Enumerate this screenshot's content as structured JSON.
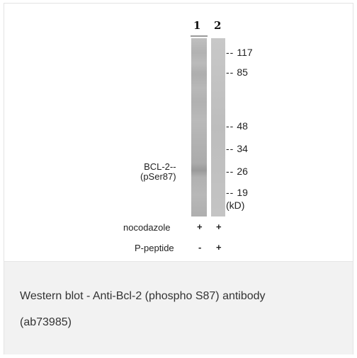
{
  "blot": {
    "lane_numbers": [
      "1",
      "2"
    ],
    "markers": [
      {
        "value": "117",
        "tick": "--"
      },
      {
        "value": "85",
        "tick": "--"
      },
      {
        "value": "48",
        "tick": "--"
      },
      {
        "value": "34",
        "tick": "--"
      },
      {
        "value": "26",
        "tick": "--"
      },
      {
        "value": "19",
        "tick": "--"
      }
    ],
    "unit": "(kD)",
    "band_label_line1": "BCL-2--",
    "band_label_line2": "(pSer87)",
    "treatments": [
      {
        "name": "nocodazole",
        "lane1": "+",
        "lane2": "+"
      },
      {
        "name": "P-peptide",
        "lane1": "-",
        "lane2": "+"
      }
    ]
  },
  "caption": {
    "line1": "Western blot - Anti-Bcl-2 (phospho S87) antibody",
    "line2": "(ab73985)"
  }
}
